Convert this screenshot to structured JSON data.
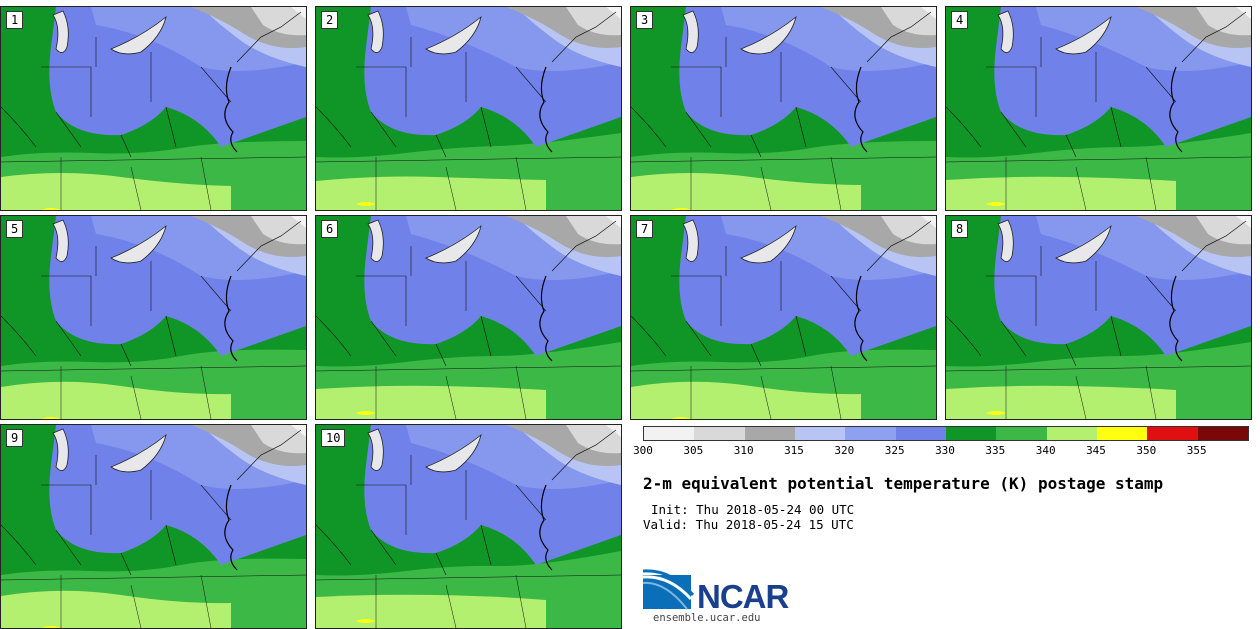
{
  "panels": [
    {
      "label": "1"
    },
    {
      "label": "2"
    },
    {
      "label": "3"
    },
    {
      "label": "4"
    },
    {
      "label": "5"
    },
    {
      "label": "6"
    },
    {
      "label": "7"
    },
    {
      "label": "8"
    },
    {
      "label": "9"
    },
    {
      "label": "10"
    }
  ],
  "colorbar": {
    "ticks": [
      "300",
      "305",
      "310",
      "315",
      "320",
      "325",
      "330",
      "335",
      "340",
      "345",
      "350",
      "355"
    ],
    "colors": [
      "#f2f2f2",
      "#d9d9d9",
      "#a8a8a8",
      "#b8c4f4",
      "#8ea1f0",
      "#7082ea",
      "#109627",
      "#3cb847",
      "#b4f070",
      "#ffff10",
      "#e01010",
      "#7a0808"
    ]
  },
  "title": "2-m equivalent potential temperature (K) postage stamp",
  "init": "Init: Thu 2018-05-24 00 UTC",
  "valid": "Valid: Thu 2018-05-24 15 UTC",
  "logo": {
    "text": "NCAR",
    "url": "ensemble.ucar.edu"
  }
}
